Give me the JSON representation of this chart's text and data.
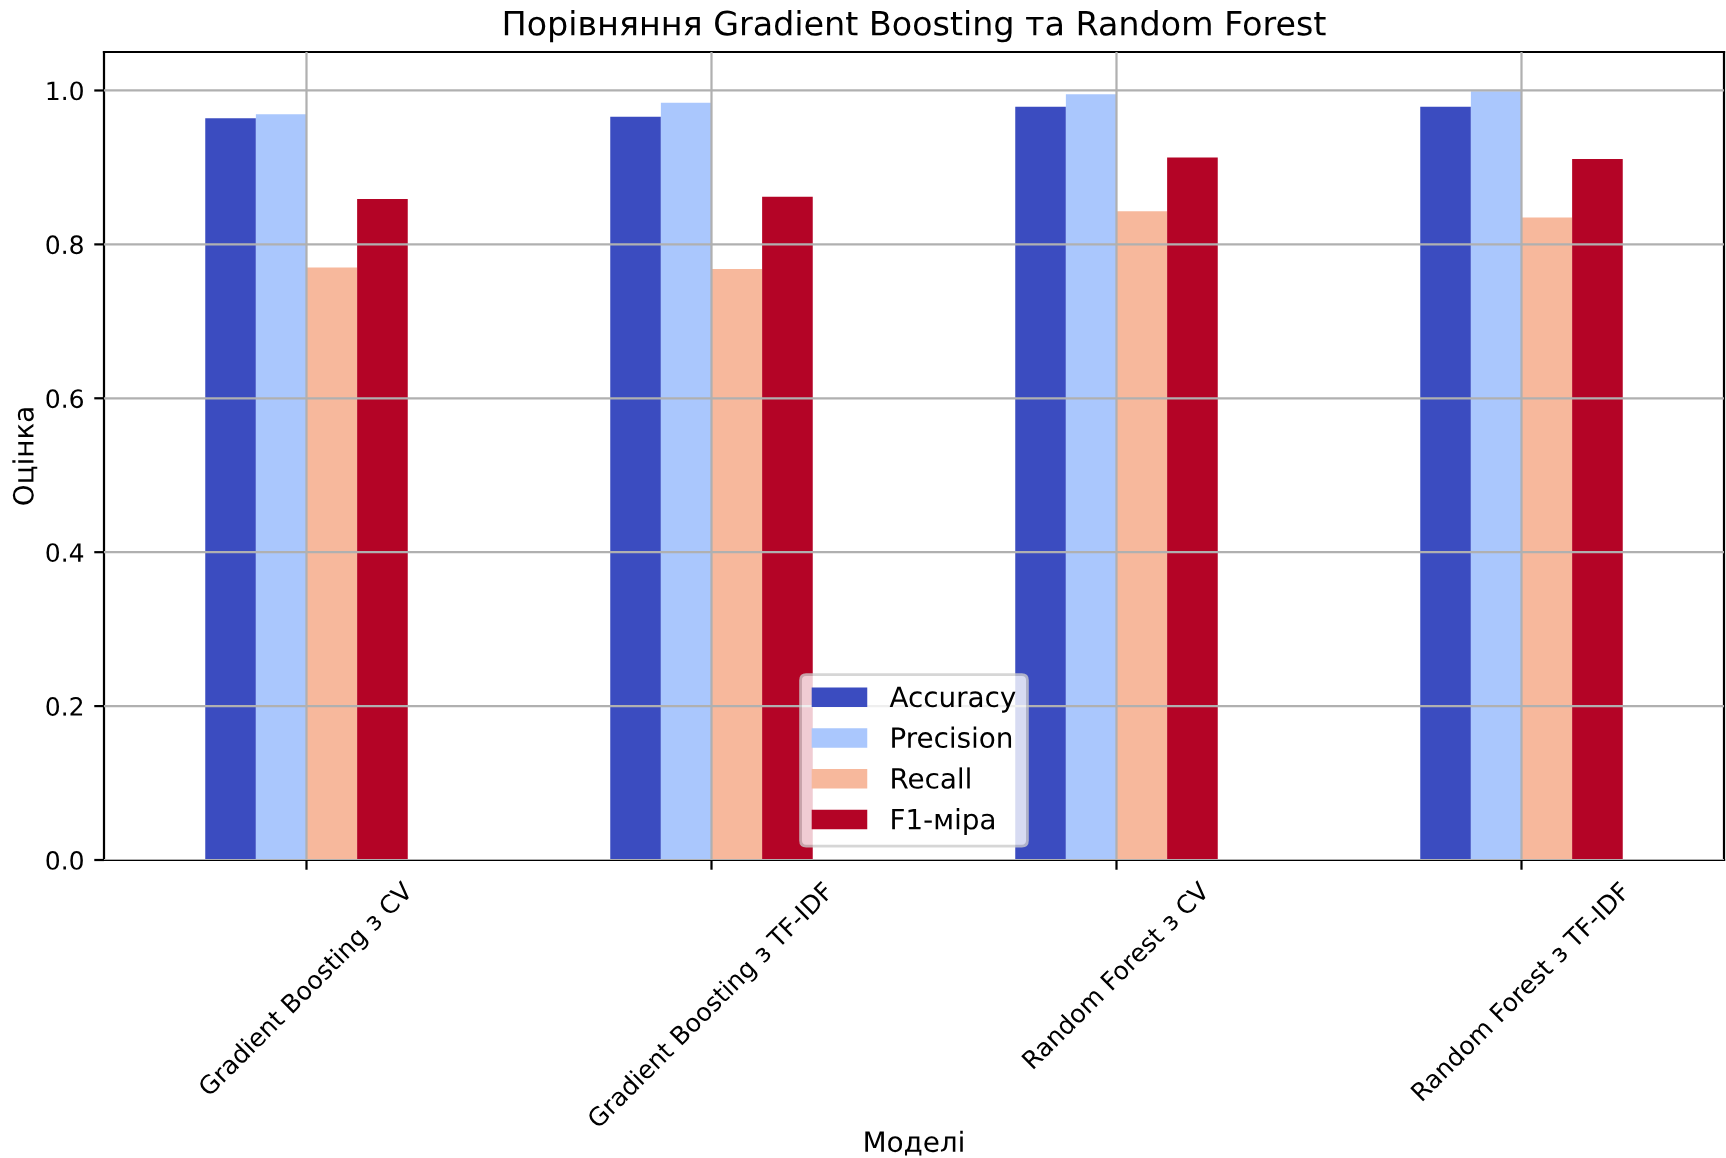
{
  "chart_data": {
    "type": "bar",
    "title": "Порівняння Gradient Boosting та Random Forest",
    "xlabel": "Моделі",
    "ylabel": "Оцінка",
    "categories": [
      "Gradient Boosting з CV",
      "Gradient Boosting з TF-IDF",
      "Random Forest з CV",
      "Random Forest з TF-IDF"
    ],
    "series": [
      {
        "name": "Accuracy",
        "color": "#3b4cc0",
        "values": [
          0.964,
          0.966,
          0.979,
          0.979
        ]
      },
      {
        "name": "Precision",
        "color": "#aac7fd",
        "values": [
          0.969,
          0.984,
          0.995,
          0.999
        ]
      },
      {
        "name": "Recall",
        "color": "#f7b89c",
        "values": [
          0.77,
          0.768,
          0.843,
          0.835
        ]
      },
      {
        "name": "F1-міра",
        "color": "#b40426",
        "values": [
          0.859,
          0.862,
          0.913,
          0.911
        ]
      }
    ],
    "ylim": [
      0,
      1.05
    ],
    "yticks": [
      {
        "value": 0,
        "label": "0.0"
      },
      {
        "value": 0.2,
        "label": "0.2"
      },
      {
        "value": 0.4,
        "label": "0.4"
      },
      {
        "value": 0.6,
        "label": "0.6"
      },
      {
        "value": 0.8,
        "label": "0.8"
      },
      {
        "value": 1.0,
        "label": "1.0"
      }
    ],
    "grid": true,
    "legend": "bottom"
  }
}
